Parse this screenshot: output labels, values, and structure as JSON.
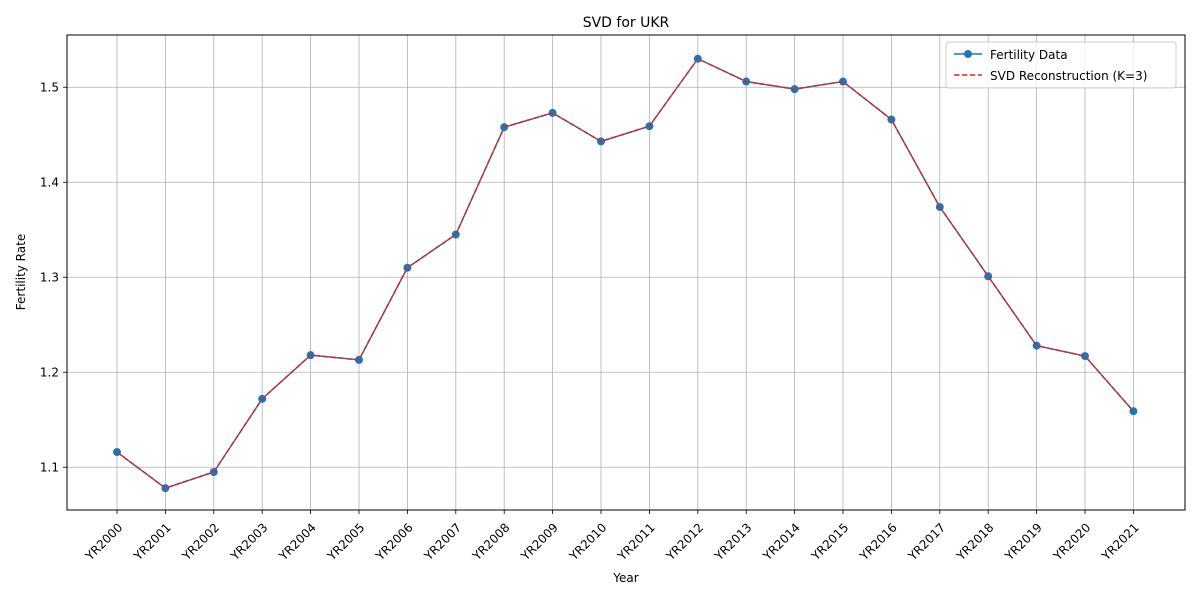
{
  "chart_data": {
    "type": "line",
    "title": "SVD for UKR",
    "xlabel": "Year",
    "ylabel": "Fertility Rate",
    "categories": [
      "YR2000",
      "YR2001",
      "YR2002",
      "YR2003",
      "YR2004",
      "YR2005",
      "YR2006",
      "YR2007",
      "YR2008",
      "YR2009",
      "YR2010",
      "YR2011",
      "YR2012",
      "YR2013",
      "YR2014",
      "YR2015",
      "YR2016",
      "YR2017",
      "YR2018",
      "YR2019",
      "YR2020",
      "YR2021"
    ],
    "ylim": [
      1.055,
      1.555
    ],
    "yticks": [
      1.1,
      1.2,
      1.3,
      1.4,
      1.5
    ],
    "ytick_labels": [
      "1.1",
      "1.2",
      "1.3",
      "1.4",
      "1.5"
    ],
    "grid": true,
    "legend_position": "top-right",
    "series": [
      {
        "name": "Fertility Data",
        "style": "solid line with circle markers",
        "color": "#1f77b4",
        "values": [
          1.116,
          1.078,
          1.095,
          1.172,
          1.218,
          1.213,
          1.31,
          1.345,
          1.458,
          1.473,
          1.443,
          1.459,
          1.53,
          1.506,
          1.498,
          1.506,
          1.466,
          1.374,
          1.301,
          1.228,
          1.217,
          1.159
        ]
      },
      {
        "name": "SVD Reconstruction (K=3)",
        "style": "dashed line",
        "color": "#d62728",
        "values": [
          1.116,
          1.078,
          1.095,
          1.172,
          1.218,
          1.213,
          1.31,
          1.345,
          1.458,
          1.473,
          1.443,
          1.459,
          1.53,
          1.506,
          1.498,
          1.506,
          1.466,
          1.374,
          1.301,
          1.228,
          1.217,
          1.159
        ]
      }
    ]
  }
}
